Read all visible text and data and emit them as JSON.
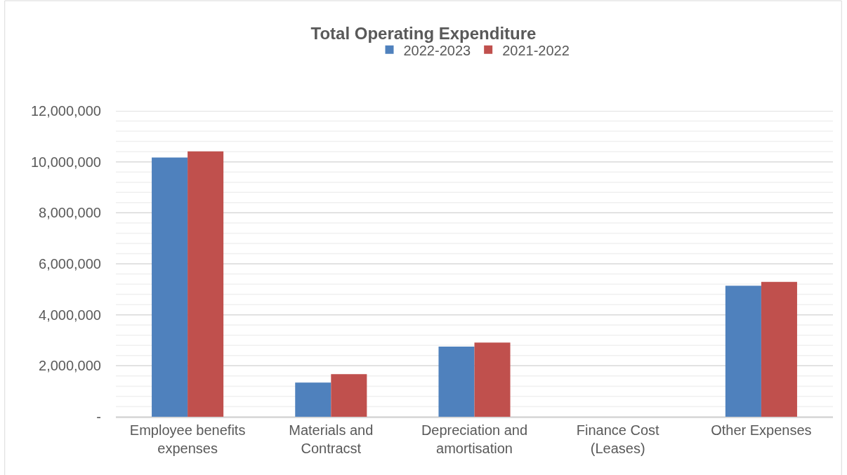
{
  "chart_data": {
    "type": "bar",
    "title": "Total Operating Expenditure",
    "categories": [
      "Employee benefits expenses",
      "Materials and Contracst",
      "Depreciation and amortisation",
      "Finance Cost (Leases)",
      "Other Expenses"
    ],
    "series": [
      {
        "name": "2022-2023",
        "color": "#4f81bd",
        "values": [
          10170000,
          1340000,
          2750000,
          0,
          5140000
        ]
      },
      {
        "name": "2021-2022",
        "color": "#c0504d",
        "values": [
          10410000,
          1670000,
          2910000,
          0,
          5290000
        ]
      }
    ],
    "ylim": [
      0,
      12000000
    ],
    "yticks": [
      {
        "value": 0,
        "label": "-"
      },
      {
        "value": 400000,
        "label": null
      },
      {
        "value": 800000,
        "label": null
      },
      {
        "value": 1200000,
        "label": null
      },
      {
        "value": 1600000,
        "label": null
      },
      {
        "value": 2000000,
        "label": "2,000,000"
      },
      {
        "value": 2400000,
        "label": null
      },
      {
        "value": 2800000,
        "label": null
      },
      {
        "value": 3200000,
        "label": null
      },
      {
        "value": 3600000,
        "label": null
      },
      {
        "value": 4000000,
        "label": "4,000,000"
      },
      {
        "value": 4400000,
        "label": null
      },
      {
        "value": 4800000,
        "label": null
      },
      {
        "value": 5200000,
        "label": null
      },
      {
        "value": 5600000,
        "label": null
      },
      {
        "value": 6000000,
        "label": "6,000,000"
      },
      {
        "value": 6400000,
        "label": null
      },
      {
        "value": 6800000,
        "label": null
      },
      {
        "value": 7200000,
        "label": null
      },
      {
        "value": 7600000,
        "label": null
      },
      {
        "value": 8000000,
        "label": "8,000,000"
      },
      {
        "value": 8400000,
        "label": null
      },
      {
        "value": 8800000,
        "label": null
      },
      {
        "value": 9200000,
        "label": null
      },
      {
        "value": 9600000,
        "label": null
      },
      {
        "value": 10000000,
        "label": "10,000,000"
      },
      {
        "value": 10400000,
        "label": null
      },
      {
        "value": 10800000,
        "label": null
      },
      {
        "value": 11200000,
        "label": null
      },
      {
        "value": 11600000,
        "label": null
      },
      {
        "value": 12000000,
        "label": "12,000,000"
      }
    ],
    "grid": "y",
    "legend": "top"
  }
}
